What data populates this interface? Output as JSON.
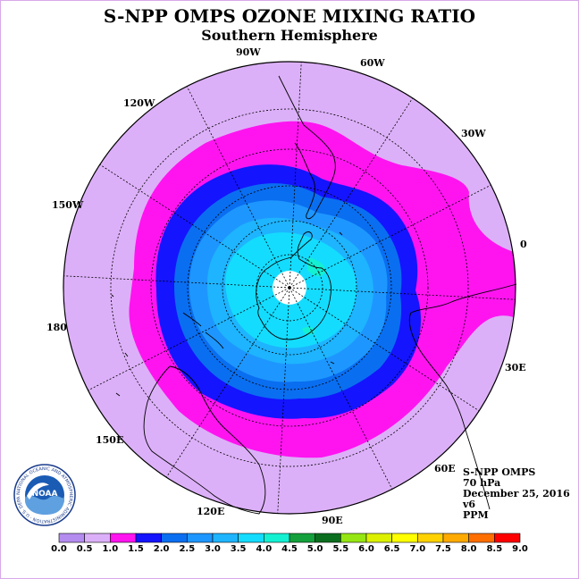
{
  "header": {
    "title": "S-NPP OMPS OZONE MIXING RATIO",
    "subtitle": "Southern Hemisphere"
  },
  "longitude_labels": [
    {
      "id": "90w",
      "text": "90W"
    },
    {
      "id": "60w",
      "text": "60W"
    },
    {
      "id": "30w",
      "text": "30W"
    },
    {
      "id": "0",
      "text": "0"
    },
    {
      "id": "30e",
      "text": "30E"
    },
    {
      "id": "60e",
      "text": "60E"
    },
    {
      "id": "90e",
      "text": "90E"
    },
    {
      "id": "120e",
      "text": "120E"
    },
    {
      "id": "150e",
      "text": "150E"
    },
    {
      "id": "180",
      "text": "180"
    },
    {
      "id": "150w",
      "text": "150W"
    },
    {
      "id": "120w",
      "text": "120W"
    }
  ],
  "info": {
    "instrument": "S-NPP OMPS",
    "level": "70 hPa",
    "date": "December 25, 2016",
    "version": "v6",
    "units": "PPM"
  },
  "logo": {
    "text": "NOAA",
    "ring_text": "NATIONAL OCEANIC AND ATMOSPHERIC ADMINISTRATION · U.S. DEPARTMENT OF COMMERCE"
  },
  "colorbar": {
    "ticks": [
      "0.0",
      "0.5",
      "1.0",
      "1.5",
      "2.0",
      "2.5",
      "3.0",
      "3.5",
      "4.0",
      "4.5",
      "5.0",
      "5.5",
      "6.0",
      "6.5",
      "7.0",
      "7.5",
      "8.0",
      "8.5",
      "9.0"
    ],
    "colors": [
      "#b48cf0",
      "#dcb0f8",
      "#ff14f0",
      "#1414ff",
      "#0a6ef0",
      "#1e96ff",
      "#1eb4ff",
      "#14dcff",
      "#14f0d2",
      "#14a03c",
      "#0a6e1e",
      "#96e614",
      "#dcf000",
      "#ffff00",
      "#ffd200",
      "#ffaa00",
      "#ff6e00",
      "#ff0000",
      "#8c5a3c"
    ]
  },
  "map": {
    "projection": "south-polar-stereographic",
    "zone_colors": {
      "outer": "#dcb0f8",
      "magenta": "#ff14f0",
      "dark_blue": "#1414ff",
      "medium_blue": "#0a6ef0",
      "blue": "#1e96ff",
      "light_blue": "#1eb4ff",
      "cyan": "#14dcff",
      "aqua": "#14f0d2"
    }
  }
}
